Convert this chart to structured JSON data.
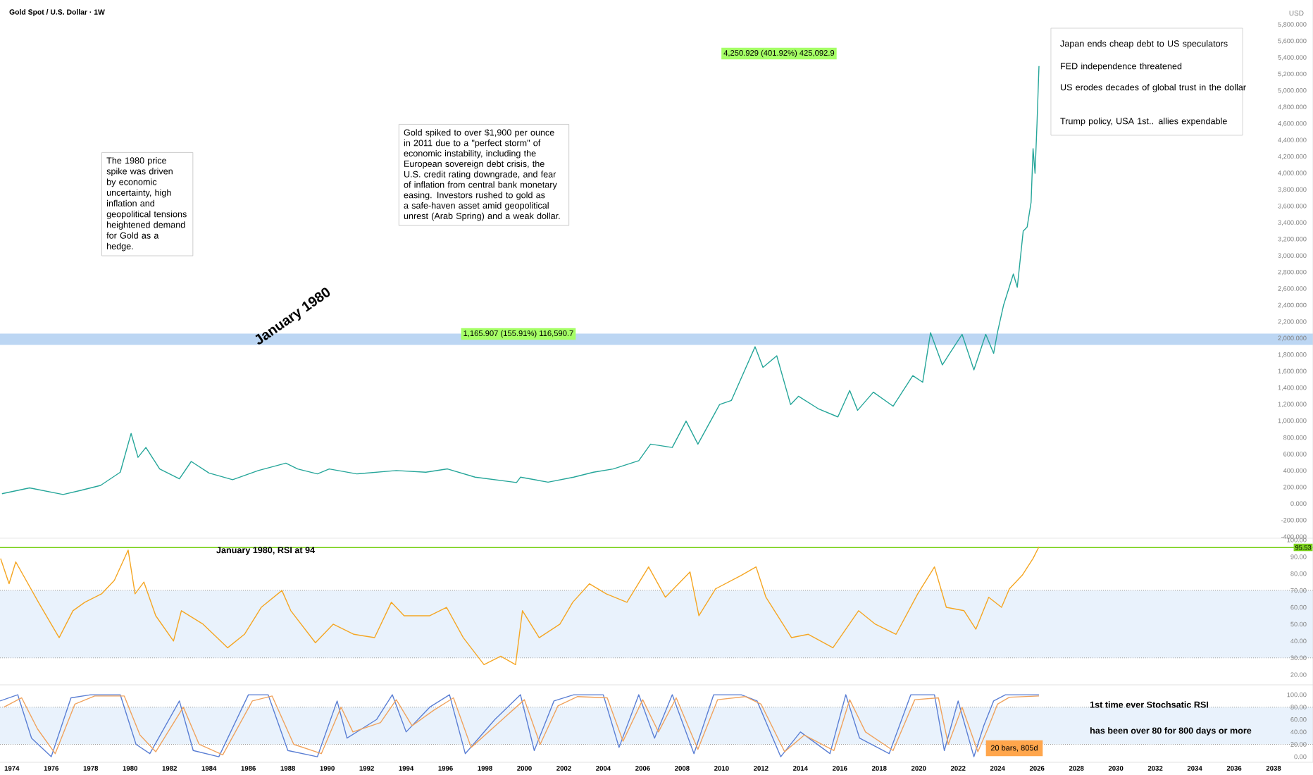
{
  "chart_data": [
    {
      "type": "line",
      "title": "Gold Spot / U.S. Dollar · 1W",
      "ylabel": "USD",
      "series": [
        {
          "color": "#26a69a",
          "x": [
            1973.5,
            1974.9,
            1976.6,
            1977.5,
            1978.5,
            1979.5,
            1980.05,
            1980.4,
            1980.8,
            1981.5,
            1982.5,
            1983.1,
            1984.0,
            1985.2,
            1986.5,
            1987.9,
            1988.5,
            1989.5,
            1990.1,
            1991.5,
            1993.5,
            1995.0,
            1996.1,
            1997.5,
            1999.6,
            1999.8,
            2001.2,
            2002.5,
            2003.5,
            2004.5,
            2005.8,
            2006.4,
            2007.5,
            2008.2,
            2008.8,
            2009.9,
            2010.5,
            2011.7,
            2012.1,
            2012.8,
            2013.5,
            2013.9,
            2014.9,
            2015.9,
            2016.5,
            2016.9,
            2017.7,
            2018.7,
            2019.7,
            2020.2,
            2020.6,
            2021.2,
            2021.6,
            2022.2,
            2022.8,
            2023.4,
            2023.8,
            2024.0,
            2024.3,
            2024.8,
            2025.0,
            2025.3,
            2025.5,
            2025.7,
            2025.8,
            2025.9,
            2026.0,
            2026.1
          ],
          "values": [
            120,
            190,
            110,
            160,
            220,
            380,
            850,
            560,
            680,
            420,
            300,
            510,
            370,
            290,
            400,
            490,
            420,
            360,
            420,
            360,
            400,
            380,
            420,
            320,
            255,
            320,
            260,
            320,
            380,
            420,
            520,
            720,
            680,
            1000,
            720,
            1200,
            1250,
            1900,
            1650,
            1790,
            1200,
            1300,
            1150,
            1050,
            1370,
            1130,
            1350,
            1180,
            1550,
            1470,
            2070,
            1680,
            1830,
            2050,
            1620,
            2050,
            1820,
            2080,
            2400,
            2780,
            2620,
            3300,
            3350,
            3650,
            4300,
            4000,
            4600,
            5300
          ]
        }
      ],
      "xlim": [
        1973.4,
        2040
      ],
      "xticks": [
        1974,
        1976,
        1978,
        1980,
        1982,
        1984,
        1986,
        1988,
        1990,
        1992,
        1994,
        1996,
        1998,
        2000,
        2002,
        2004,
        2006,
        2008,
        2010,
        2012,
        2014,
        2016,
        2018,
        2020,
        2022,
        2024,
        2026,
        2028,
        2030,
        2032,
        2034,
        2036,
        2038
      ],
      "ylim": [
        -420,
        6100
      ],
      "yticks": [
        {
          "value": 5800,
          "label": "5,800.000"
        },
        {
          "value": 5600,
          "label": "5,600.000"
        },
        {
          "value": 5400,
          "label": "5,400.000"
        },
        {
          "value": 5200,
          "label": "5,200.000"
        },
        {
          "value": 5000,
          "label": "5,000.000"
        },
        {
          "value": 4800,
          "label": "4,800.000"
        },
        {
          "value": 4600,
          "label": "4,600.000"
        },
        {
          "value": 4400,
          "label": "4,400.000"
        },
        {
          "value": 4200,
          "label": "4,200.000"
        },
        {
          "value": 4000,
          "label": "4,000.000"
        },
        {
          "value": 3800,
          "label": "3,800.000"
        },
        {
          "value": 3600,
          "label": "3,600.000"
        },
        {
          "value": 3400,
          "label": "3,400.000"
        },
        {
          "value": 3200,
          "label": "3,200.000"
        },
        {
          "value": 3000,
          "label": "3,000.000"
        },
        {
          "value": 2800,
          "label": "2,800.000"
        },
        {
          "value": 2600,
          "label": "2,600.000"
        },
        {
          "value": 2400,
          "label": "2,400.000"
        },
        {
          "value": 2200,
          "label": "2,200.000"
        },
        {
          "value": 2000,
          "label": "2,000.000"
        },
        {
          "value": 1800,
          "label": "1,800.000"
        },
        {
          "value": 1600,
          "label": "1,600.000"
        },
        {
          "value": 1400,
          "label": "1,400.000"
        },
        {
          "value": 1200,
          "label": "1,200.000"
        },
        {
          "value": 1000,
          "label": "1,000.000"
        },
        {
          "value": 800,
          "label": "800.000"
        },
        {
          "value": 600,
          "label": "600.000"
        },
        {
          "value": 400,
          "label": "400.000"
        },
        {
          "value": 200,
          "label": "200.000"
        },
        {
          "value": 0,
          "label": "0.000"
        },
        {
          "value": -200,
          "label": "-200.000"
        },
        {
          "value": -400,
          "label": "-400.000"
        }
      ],
      "tick_labels": "y",
      "bands": [
        {
          "axis": "y",
          "from": 1920,
          "to": 2060,
          "label": null,
          "color": "#bcd6f3"
        }
      ],
      "annotations": [
        "January 1980",
        "The 1980 price spike was driven by economic uncertainty, high inflation and geopolitical tensions heightened demand for Gold as a hedge.",
        "Gold spiked to over $1,900 per ounce in 2011 due to a \"perfect storm\" of economic instability, including the European sovereign debt crisis, the U.S. credit rating downgrade, and fear of inflation from central bank monetary easing. Investors rushed to gold as a safe-haven asset amid geopolitical unrest (Arab Spring) and a weak dollar.",
        "1,165.907 (155.91%) 116,590.7",
        "4,250.929 (401.92%) 425,092.9",
        "Japan ends cheap debt to US speculators",
        "FED independence threatened",
        "US erodes decades of global trust in the dollar",
        "Trump policy,  USA 1st..  allies expendable"
      ]
    },
    {
      "type": "line",
      "series": [
        {
          "color": "#f5a623",
          "x": [
            1973.43,
            1973.86,
            1974.2,
            1975.35,
            1976.4,
            1977.1,
            1977.7,
            1978.55,
            1979.2,
            1979.9,
            1980.25,
            1980.7,
            1981.3,
            1982.2,
            1982.6,
            1983.7,
            1984.95,
            1985.8,
            1986.65,
            1987.7,
            1988.15,
            1989.4,
            1990.3,
            1991.35,
            1992.4,
            1993.25,
            1993.9,
            1995.2,
            1996.05,
            1996.9,
            1997.95,
            1998.8,
            1999.55,
            1999.9,
            2000.75,
            2001.8,
            2002.45,
            2003.3,
            2004.15,
            2005.2,
            2006.3,
            2007.15,
            2008.4,
            2008.85,
            2009.7,
            2011.0,
            2011.75,
            2012.25,
            2013.55,
            2014.4,
            2015.65,
            2016.3,
            2016.95,
            2017.8,
            2018.85,
            2019.95,
            2020.8,
            2021.4,
            2022.3,
            2022.9,
            2023.55,
            2024.2,
            2024.6,
            2025.25,
            2025.8,
            2026.1
          ],
          "values": [
            89,
            74,
            87,
            63,
            42,
            58,
            63,
            68,
            76,
            94,
            68,
            75,
            55,
            40,
            58,
            50,
            36,
            44,
            60,
            70,
            58,
            39,
            50,
            44,
            42,
            63,
            55,
            55,
            60,
            42,
            26,
            31,
            26,
            58,
            42,
            50,
            63,
            74,
            68,
            63,
            84,
            66,
            81,
            55,
            71,
            79,
            84,
            66,
            42,
            44,
            36,
            47,
            58,
            50,
            44,
            68,
            84,
            60,
            58,
            47,
            66,
            60,
            71,
            79,
            89,
            96
          ]
        }
      ],
      "xlim": [
        1973.4,
        2040
      ],
      "xticks": [
        1974,
        1976,
        1978,
        1980,
        1982,
        1984,
        1986,
        1988,
        1990,
        1992,
        1994,
        1996,
        1998,
        2000,
        2002,
        2004,
        2006,
        2008,
        2010,
        2012,
        2014,
        2016,
        2018,
        2020,
        2022,
        2024,
        2026,
        2028,
        2030,
        2032,
        2034,
        2036,
        2038
      ],
      "ylim": [
        14,
        101
      ],
      "yticks": [
        {
          "value": 100,
          "label": "100.00"
        },
        {
          "value": 90,
          "label": "90.00"
        },
        {
          "value": 80,
          "label": "80.00"
        },
        {
          "value": 70,
          "label": "70.00"
        },
        {
          "value": 60,
          "label": "60.00"
        },
        {
          "value": 50,
          "label": "50.00"
        },
        {
          "value": 40,
          "label": "40.00"
        },
        {
          "value": 30,
          "label": "30.00"
        },
        {
          "value": 20,
          "label": "20.00"
        }
      ],
      "tick_labels": "y",
      "bands": [
        {
          "axis": "y",
          "from": 30,
          "to": 70,
          "label": null,
          "color": "#e9f2fc"
        }
      ],
      "ref_lines": [
        {
          "axis": "y",
          "value": 95.53,
          "label": "95.53",
          "color": "#7ed321"
        },
        {
          "axis": "y",
          "value": 70,
          "label": null,
          "color": "#9e9e9e",
          "line_style": "dotted"
        },
        {
          "axis": "y",
          "value": 30,
          "label": null,
          "color": "#9e9e9e",
          "line_style": "dotted"
        }
      ],
      "annotations": [
        "January 1980, RSI at 94"
      ]
    },
    {
      "type": "line",
      "series": [
        {
          "color": "#5b7fd4",
          "x": [
            1973.4,
            1974.3,
            1975.0,
            1976.0,
            1977.0,
            1978.0,
            1979.5,
            1980.3,
            1981.0,
            1982.5,
            1983.2,
            1984.5,
            1986.0,
            1987.0,
            1988.0,
            1989.5,
            1990.5,
            1991.0,
            1992.5,
            1993.3,
            1994.0,
            1995.2,
            1996.2,
            1997.0,
            1998.5,
            1999.8,
            2000.5,
            2001.5,
            2002.5,
            2004.0,
            2004.8,
            2005.8,
            2006.6,
            2007.5,
            2008.6,
            2009.6,
            2011.0,
            2011.8,
            2013.0,
            2014.0,
            2015.5,
            2016.3,
            2017.0,
            2018.5,
            2019.6,
            2020.8,
            2021.3,
            2022.0,
            2022.8,
            2023.3,
            2023.8,
            2024.4,
            2026.1
          ],
          "values": [
            90,
            100,
            30,
            0,
            95,
            100,
            100,
            20,
            5,
            90,
            10,
            0,
            100,
            100,
            10,
            0,
            90,
            30,
            60,
            100,
            40,
            80,
            100,
            5,
            60,
            100,
            10,
            90,
            100,
            100,
            15,
            100,
            30,
            100,
            5,
            100,
            100,
            90,
            0,
            40,
            5,
            100,
            30,
            5,
            100,
            100,
            10,
            90,
            0,
            50,
            90,
            100,
            100
          ]
        },
        {
          "color": "#f0a35e",
          "x": [
            1973.6,
            1974.5,
            1975.3,
            1976.2,
            1977.2,
            1978.2,
            1979.7,
            1980.5,
            1981.3,
            1982.7,
            1983.5,
            1984.7,
            1986.2,
            1987.2,
            1988.3,
            1989.7,
            1990.7,
            1991.3,
            1992.7,
            1993.5,
            1994.3,
            1995.4,
            1996.4,
            1997.3,
            1998.7,
            2000.0,
            2000.8,
            2001.7,
            2002.7,
            2004.2,
            2005.0,
            2006.0,
            2006.8,
            2007.7,
            2008.8,
            2009.8,
            2011.2,
            2012.0,
            2013.2,
            2014.2,
            2015.7,
            2016.5,
            2017.3,
            2018.7,
            2019.8,
            2021.0,
            2021.5,
            2022.2,
            2023.0,
            2023.5,
            2024.0,
            2024.6,
            2026.1
          ],
          "values": [
            80,
            95,
            45,
            5,
            85,
            98,
            98,
            35,
            8,
            80,
            20,
            3,
            90,
            98,
            20,
            5,
            80,
            40,
            55,
            92,
            50,
            75,
            95,
            15,
            55,
            92,
            20,
            82,
            97,
            95,
            25,
            92,
            40,
            95,
            12,
            92,
            97,
            85,
            8,
            35,
            10,
            92,
            40,
            10,
            92,
            95,
            20,
            80,
            8,
            45,
            85,
            96,
            98
          ]
        }
      ],
      "xlim": [
        1973.4,
        2040
      ],
      "xticks": [
        1974,
        1976,
        1978,
        1980,
        1982,
        1984,
        1986,
        1988,
        1990,
        1992,
        1994,
        1996,
        1998,
        2000,
        2002,
        2004,
        2006,
        2008,
        2010,
        2012,
        2014,
        2016,
        2018,
        2020,
        2022,
        2024,
        2026,
        2028,
        2030,
        2032,
        2034,
        2036,
        2038
      ],
      "ylim": [
        -9,
        116
      ],
      "yticks": [
        {
          "value": 100,
          "label": "100.00"
        },
        {
          "value": 80,
          "label": "80.00"
        },
        {
          "value": 60,
          "label": "60.00"
        },
        {
          "value": 40,
          "label": "40.00"
        },
        {
          "value": 20,
          "label": "20.00"
        },
        {
          "value": 0,
          "label": "0.00"
        }
      ],
      "bands": [
        {
          "axis": "y",
          "from": 20,
          "to": 80,
          "label": null,
          "color": "#e9f2fc"
        }
      ],
      "ref_lines": [
        {
          "axis": "y",
          "value": 80,
          "label": null,
          "color": "#9e9e9e",
          "line_style": "dotted"
        },
        {
          "axis": "y",
          "value": 20,
          "label": null,
          "color": "#9e9e9e",
          "line_style": "dotted"
        }
      ],
      "annotations": [
        "1st time ever Stochsatic RSI",
        "has been over 80 for 800 days or more",
        "20 bars, 805d"
      ]
    }
  ]
}
